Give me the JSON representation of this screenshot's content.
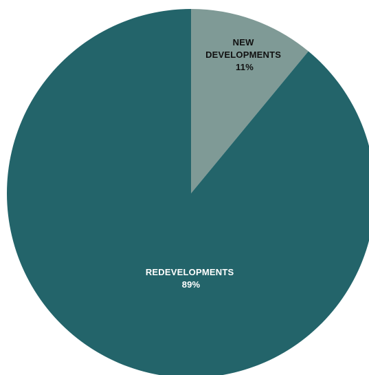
{
  "chart_data": {
    "type": "pie",
    "categories": [
      "NEW DEVELOPMENTS",
      "REDEVELOPMENTS"
    ],
    "values": [
      11,
      89
    ],
    "slices": [
      {
        "label_lines": [
          "NEW",
          "DEVELOPMENTS"
        ],
        "value": 11,
        "value_label": "11%",
        "color": "#7f9a96",
        "label_color": "#111111"
      },
      {
        "label_lines": [
          "REDEVELOPMENTS"
        ],
        "value": 89,
        "value_label": "89%",
        "color": "#23646a",
        "label_color": "#ffffff"
      }
    ],
    "legend": "none",
    "grid": false
  }
}
